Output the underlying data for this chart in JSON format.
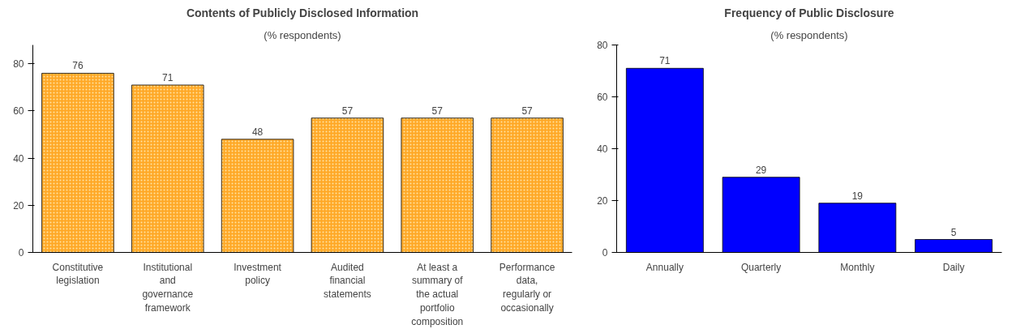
{
  "chart_data": [
    {
      "type": "bar",
      "title": "Contents of Publicly Disclosed Information",
      "subtitle": "(% respondents)",
      "categories": [
        "Constitutive legislation",
        "Institutional and governance framework",
        "Investment policy",
        "Audited financial statements",
        "At least a summary of the actual portfolio composition",
        "Performance data, regularly or occasionally"
      ],
      "values": [
        76,
        71,
        48,
        57,
        57,
        57
      ],
      "color": "#ffa928",
      "ylim": [
        0,
        88
      ],
      "yticks": [
        0,
        20,
        40,
        60,
        80
      ],
      "data_labels": true,
      "grid": false
    },
    {
      "type": "bar",
      "title": "Frequency of Public Disclosure",
      "subtitle": "(% respondents)",
      "categories": [
        "Annually",
        "Quarterly",
        "Monthly",
        "Daily"
      ],
      "values": [
        71,
        29,
        19,
        5
      ],
      "color": "#0000ff",
      "ylim": [
        0,
        80
      ],
      "yticks": [
        0,
        20,
        40,
        60,
        80
      ],
      "data_labels": true,
      "grid": false
    }
  ]
}
